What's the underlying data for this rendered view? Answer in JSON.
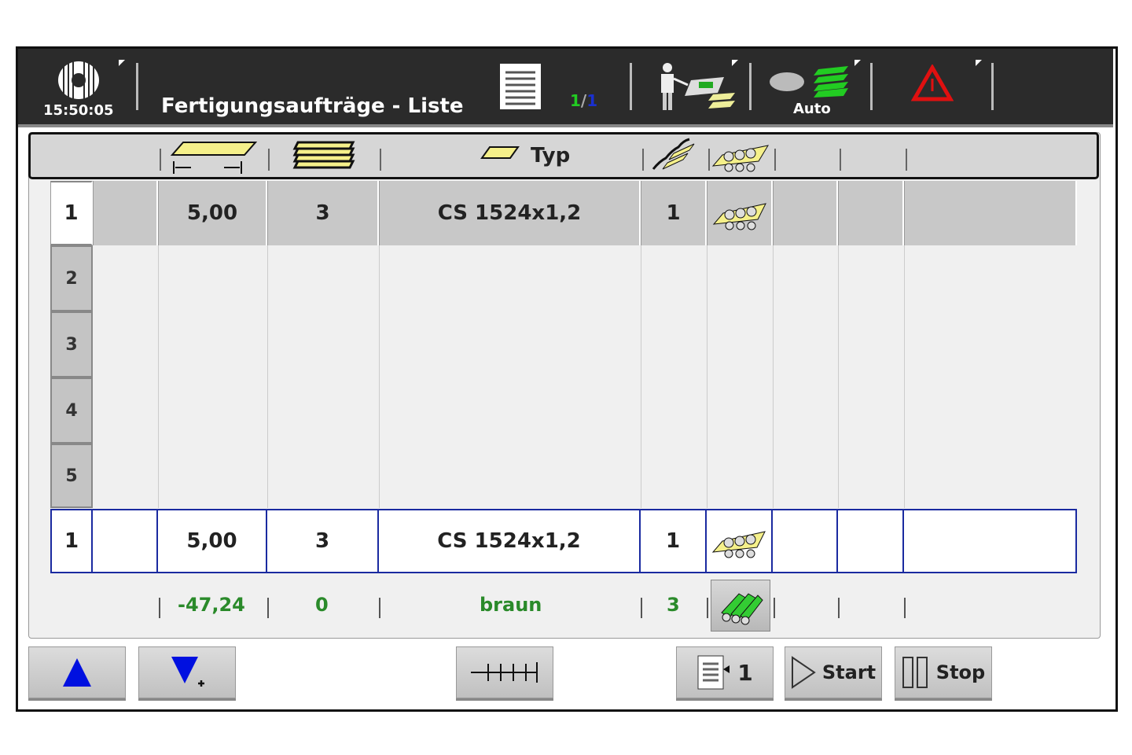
{
  "header": {
    "time": "15:50:05",
    "title": "Fertigungsaufträge - Liste",
    "page_current": "1",
    "page_sep": "/",
    "page_total": "1",
    "mode": "Auto"
  },
  "table": {
    "type_label": "Typ",
    "selected_row": {
      "no": "1",
      "length": "5,00",
      "count": "3",
      "type": "CS 1524x1,2",
      "qty": "1"
    },
    "row_numbers": [
      "2",
      "3",
      "4",
      "5"
    ],
    "active_row": {
      "no": "1",
      "length": "5,00",
      "count": "3",
      "type": "CS 1524x1,2",
      "qty": "1"
    },
    "summary": {
      "length": "-47,24",
      "count": "0",
      "color": "braun",
      "qty": "3"
    }
  },
  "buttons": {
    "up": "up",
    "down": "down",
    "jump_label": "1",
    "start": "Start",
    "stop": "Stop"
  },
  "colors": {
    "accent_green": "#2a8a2a",
    "blue": "#0010e0",
    "alarm": "#e01010"
  }
}
